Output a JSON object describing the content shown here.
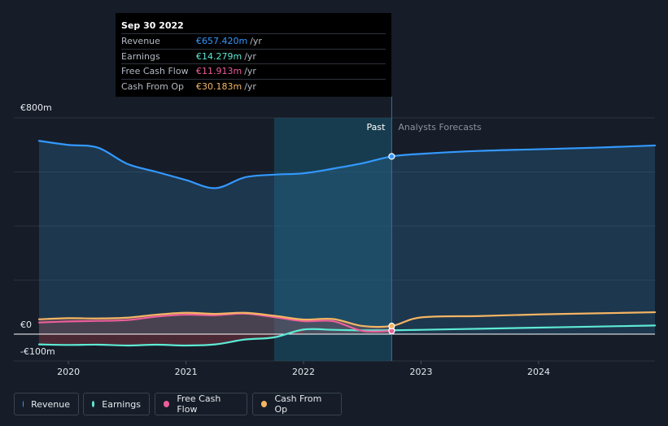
{
  "tooltip": {
    "date": "Sep 30 2022",
    "rows": [
      {
        "label": "Revenue",
        "value": "€657.420m",
        "unit": "/yr",
        "color": "#3399ff"
      },
      {
        "label": "Earnings",
        "value": "€14.279m",
        "unit": "/yr",
        "color": "#5eead4"
      },
      {
        "label": "Free Cash Flow",
        "value": "€11.913m",
        "unit": "/yr",
        "color": "#ec5f9a"
      },
      {
        "label": "Cash From Op",
        "value": "€30.183m",
        "unit": "/yr",
        "color": "#f5b563"
      }
    ]
  },
  "legend": {
    "revenue": "Revenue",
    "earnings": "Earnings",
    "fcf": "Free Cash Flow",
    "cfo": "Cash From Op"
  },
  "chart_data": {
    "type": "line",
    "title": "",
    "xlabel": "",
    "ylabel": "",
    "currency": "€",
    "y_tick_labels": [
      "€800m",
      "€0",
      "-€100m"
    ],
    "ylim": [
      -100,
      800
    ],
    "x_tick_labels": [
      "2020",
      "2021",
      "2022",
      "2023",
      "2024"
    ],
    "xlim": [
      2019.75,
      2024.99
    ],
    "past_label": "Past",
    "forecast_label": "Analysts Forecasts",
    "past_end_x": 2022.75,
    "highlight_start_x": 2021.75,
    "series": [
      {
        "name": "Revenue",
        "color": "#3399ff",
        "points": [
          [
            2019.75,
            715
          ],
          [
            2020.0,
            700
          ],
          [
            2020.25,
            690
          ],
          [
            2020.5,
            630
          ],
          [
            2020.75,
            600
          ],
          [
            2021.0,
            570
          ],
          [
            2021.25,
            540
          ],
          [
            2021.5,
            580
          ],
          [
            2021.75,
            590
          ],
          [
            2022.0,
            595
          ],
          [
            2022.25,
            612
          ],
          [
            2022.5,
            632
          ],
          [
            2022.75,
            657.42
          ],
          [
            2023.0,
            667
          ],
          [
            2023.5,
            678
          ],
          [
            2024.0,
            684
          ],
          [
            2024.5,
            690
          ],
          [
            2024.99,
            698
          ]
        ]
      },
      {
        "name": "Earnings",
        "color": "#5eead4",
        "points": [
          [
            2019.75,
            -38
          ],
          [
            2020.0,
            -40
          ],
          [
            2020.25,
            -39
          ],
          [
            2020.5,
            -42
          ],
          [
            2020.75,
            -39
          ],
          [
            2021.0,
            -42
          ],
          [
            2021.25,
            -38
          ],
          [
            2021.5,
            -20
          ],
          [
            2021.75,
            -12
          ],
          [
            2022.0,
            17
          ],
          [
            2022.25,
            16
          ],
          [
            2022.5,
            14
          ],
          [
            2022.75,
            14.28
          ],
          [
            2023.0,
            16
          ],
          [
            2023.5,
            20
          ],
          [
            2024.0,
            24
          ],
          [
            2024.5,
            28
          ],
          [
            2024.99,
            32
          ]
        ]
      },
      {
        "name": "Free Cash Flow",
        "color": "#ec5f9a",
        "points": [
          [
            2019.75,
            43
          ],
          [
            2020.0,
            47
          ],
          [
            2020.25,
            49
          ],
          [
            2020.5,
            52
          ],
          [
            2020.75,
            65
          ],
          [
            2021.0,
            72
          ],
          [
            2021.25,
            70
          ],
          [
            2021.5,
            76
          ],
          [
            2021.75,
            63
          ],
          [
            2022.0,
            48
          ],
          [
            2022.25,
            48
          ],
          [
            2022.5,
            11.91
          ],
          [
            2022.75,
            11.91
          ]
        ]
      },
      {
        "name": "Cash From Op",
        "color": "#f5b563",
        "points": [
          [
            2019.75,
            55
          ],
          [
            2020.0,
            59
          ],
          [
            2020.25,
            58
          ],
          [
            2020.5,
            61
          ],
          [
            2020.75,
            72
          ],
          [
            2021.0,
            79
          ],
          [
            2021.25,
            75
          ],
          [
            2021.5,
            79
          ],
          [
            2021.75,
            68
          ],
          [
            2022.0,
            54
          ],
          [
            2022.25,
            56
          ],
          [
            2022.5,
            30.18
          ],
          [
            2022.75,
            30.18
          ],
          [
            2023.0,
            62
          ],
          [
            2023.5,
            67
          ],
          [
            2024.0,
            73
          ],
          [
            2024.5,
            77
          ],
          [
            2024.99,
            81
          ]
        ]
      }
    ]
  }
}
